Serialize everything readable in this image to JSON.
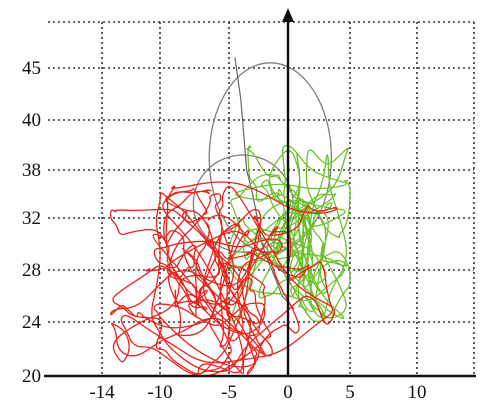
{
  "chart_data": {
    "type": "line",
    "title": "",
    "xlabel": "",
    "ylabel": "",
    "x_ticks": [
      -14,
      -10,
      -5,
      0,
      5,
      10
    ],
    "y_ticks": [
      20,
      24,
      28,
      32,
      38,
      40,
      45
    ],
    "xlim": [
      -14,
      15
    ],
    "grid": true,
    "colors": {
      "red_trace": "#e8241c",
      "green_trace": "#6cc02c",
      "ellipses": "#7f7f7f"
    },
    "ellipses": [
      {
        "cx": -1.5,
        "cy": 38.5,
        "rx": 5.0,
        "ry": 7.0
      },
      {
        "cx": -3.8,
        "cy": 33.8,
        "rx": 4.2,
        "ry": 4.8
      }
    ],
    "gray_trace": [
      [
        -4.5,
        46
      ],
      [
        -4,
        42
      ],
      [
        -3.5,
        38
      ],
      [
        -3,
        35
      ],
      [
        -2.6,
        32
      ],
      [
        -2.2,
        30
      ],
      [
        -1.6,
        28.5
      ],
      [
        -1,
        27.2
      ],
      [
        -0.5,
        26
      ],
      [
        0.5,
        25
      ]
    ],
    "series": [
      {
        "color": "red",
        "center": [
          -5.4,
          27.5
        ],
        "spread": [
          4.0,
          5.0
        ],
        "x_range": [
          -13.5,
          4
        ],
        "y_range": [
          20,
          36.5
        ],
        "seed": 7,
        "points": 520
      },
      {
        "color": "green",
        "center": [
          0.3,
          33.0
        ],
        "spread": [
          3.6,
          5.2
        ],
        "x_range": [
          -5,
          5
        ],
        "y_range": [
          24,
          39
        ],
        "seed": 13,
        "points": 360
      }
    ]
  }
}
